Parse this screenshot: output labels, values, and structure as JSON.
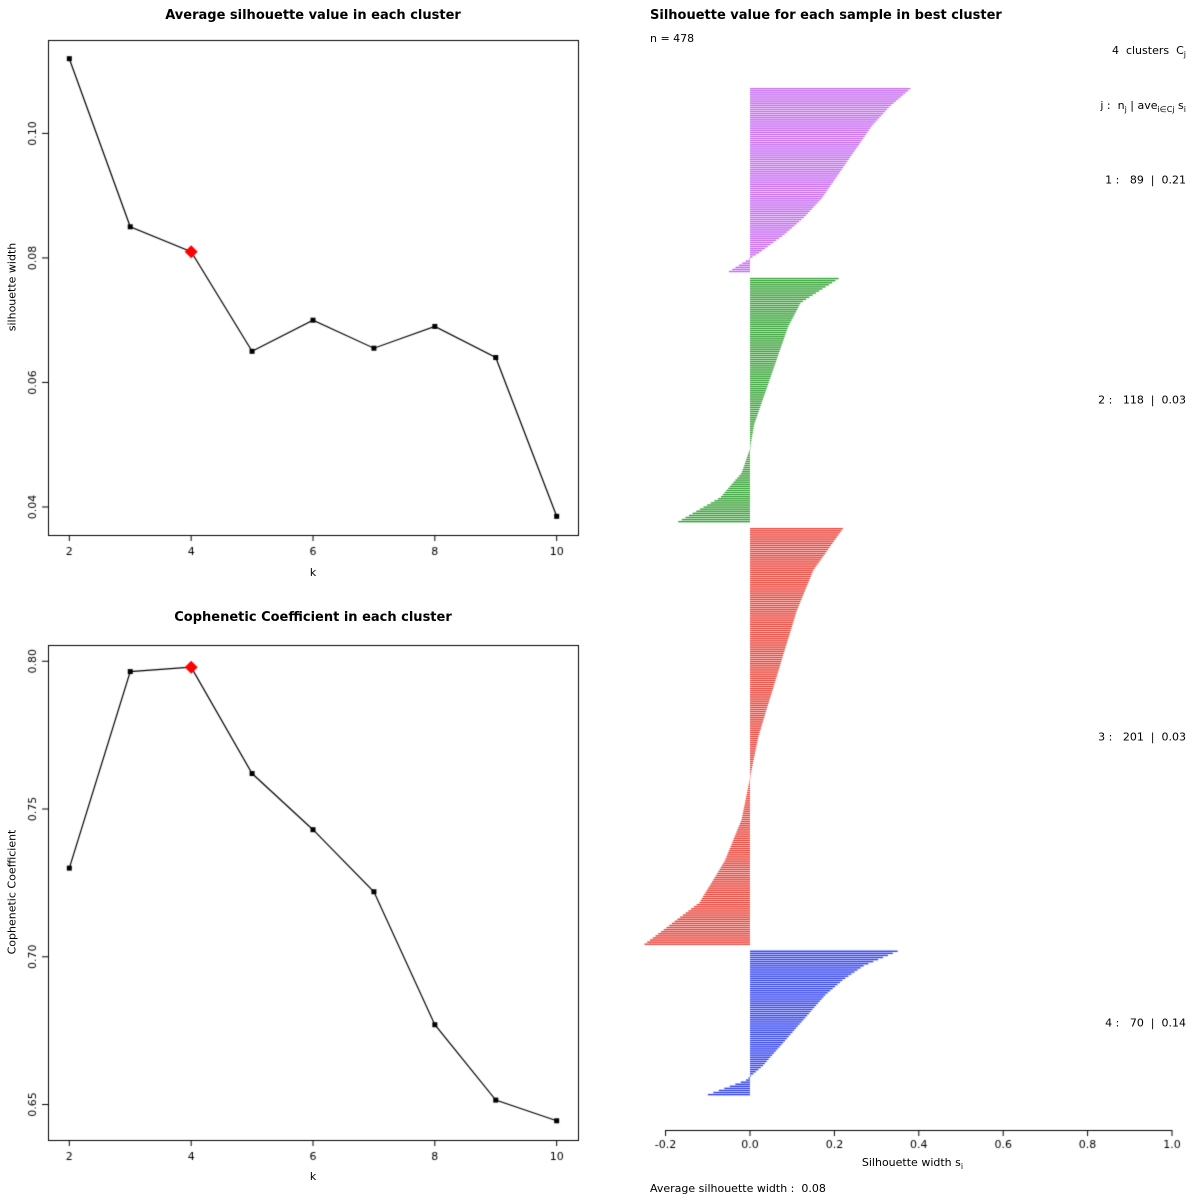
{
  "panels": {
    "silhouette_extra": {
      "n_label": "n = 478",
      "header1_main": "4  clusters  C",
      "header1_sub": "j",
      "header2_parts": [
        "j :  n",
        "j",
        " | ave",
        "i∈Cj",
        " s",
        "i"
      ],
      "xlabel_main": "Silhouette width s",
      "xlabel_sub": "i",
      "footer": "Average silhouette width :  0.08"
    }
  },
  "chart_data": [
    {
      "type": "line",
      "title": "Average silhouette value in each cluster",
      "xlabel": "k",
      "ylabel": "silhouette width",
      "x": [
        2,
        3,
        4,
        5,
        6,
        7,
        8,
        9,
        10
      ],
      "values": [
        0.112,
        0.085,
        0.081,
        0.065,
        0.07,
        0.0655,
        0.069,
        0.064,
        0.0385
      ],
      "xticks": [
        2,
        4,
        6,
        8,
        10
      ],
      "yticks": [
        0.04,
        0.06,
        0.08,
        0.1
      ],
      "ytick_labels": [
        "0.04",
        "0.06",
        "0.08",
        "0.10"
      ],
      "xlim": [
        1.65,
        10.35
      ],
      "ylim": [
        0.0355,
        0.115
      ],
      "grid": false,
      "marker": "square",
      "line_color": "#000000",
      "highlight": {
        "k": 4,
        "color": "#ff0000",
        "marker": "diamond"
      }
    },
    {
      "type": "line",
      "title": "Cophenetic Coefficient in each cluster",
      "xlabel": "k",
      "ylabel": "Cophenetic Coefficient",
      "x": [
        2,
        3,
        4,
        5,
        6,
        7,
        8,
        9,
        10
      ],
      "values": [
        0.73,
        0.7965,
        0.798,
        0.762,
        0.743,
        0.722,
        0.677,
        0.6515,
        0.6445
      ],
      "xticks": [
        2,
        4,
        6,
        8,
        10
      ],
      "yticks": [
        0.65,
        0.7,
        0.75,
        0.8
      ],
      "ytick_labels": [
        "0.65",
        "0.70",
        "0.75",
        "0.80"
      ],
      "xlim": [
        1.65,
        10.35
      ],
      "ylim": [
        0.638,
        0.8055
      ],
      "grid": false,
      "marker": "square",
      "line_color": "#000000",
      "highlight": {
        "k": 4,
        "color": "#ff0000",
        "marker": "diamond"
      }
    },
    {
      "type": "silhouette",
      "title": "Silhouette value for each sample in best cluster",
      "n": 478,
      "n_clusters": 4,
      "average_silhouette_width": 0.08,
      "xlabel": "Silhouette width si",
      "xticks": [
        -0.2,
        0.0,
        0.2,
        0.4,
        0.6,
        0.8,
        1.0
      ],
      "xlim": [
        -0.25,
        1.0
      ],
      "clusters": [
        {
          "j": 1,
          "n": 89,
          "avg": 0.21,
          "color": "#c363f0",
          "label": "1 :   89  |  0.21",
          "quantiles": [
            0.38,
            0.33,
            0.29,
            0.26,
            0.23,
            0.2,
            0.17,
            0.13,
            0.08,
            0.02,
            -0.05
          ]
        },
        {
          "j": 2,
          "n": 118,
          "avg": 0.03,
          "color": "#2f9e2f",
          "label": "2 :   118  |  0.03",
          "quantiles": [
            0.21,
            0.12,
            0.09,
            0.07,
            0.05,
            0.03,
            0.01,
            0.0,
            -0.02,
            -0.07,
            -0.17
          ]
        },
        {
          "j": 3,
          "n": 201,
          "avg": 0.03,
          "color": "#e8392e",
          "label": "3 :   201  |  0.03",
          "quantiles": [
            0.22,
            0.15,
            0.11,
            0.08,
            0.05,
            0.02,
            0.0,
            -0.02,
            -0.06,
            -0.12,
            -0.25
          ]
        },
        {
          "j": 4,
          "n": 70,
          "avg": 0.14,
          "color": "#2b3cf0",
          "label": "4 :   70  |  0.14",
          "quantiles": [
            0.35,
            0.27,
            0.22,
            0.18,
            0.15,
            0.12,
            0.09,
            0.06,
            0.03,
            -0.01,
            -0.1
          ]
        }
      ]
    }
  ]
}
